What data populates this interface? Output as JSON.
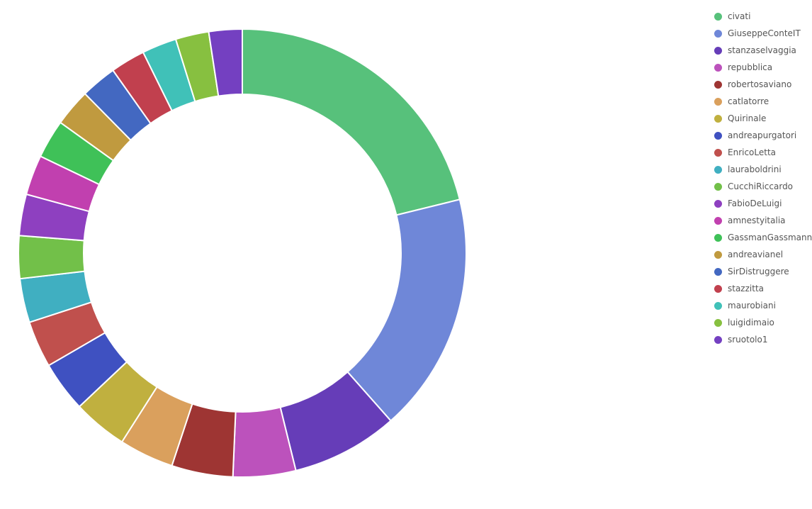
{
  "chart_data": {
    "type": "pie",
    "variant": "donut",
    "legend_position": "top-right",
    "title": "",
    "categories": [
      "civati",
      "GiuseppeConteIT",
      "stanzaselvaggia",
      "repubblica",
      "robertosaviano",
      "catlatorre",
      "Quirinale",
      "andreapurgatori",
      "EnricoLetta",
      "lauraboldrini",
      "CucchiRiccardo",
      "FabioDeLuigi",
      "amnestyitalia",
      "GassmanGassmann",
      "andreavianel",
      "SirDistruggere",
      "stazzitta",
      "maurobiani",
      "luigidimaio",
      "sruotolo1"
    ],
    "values": [
      22.0,
      18.0,
      8.0,
      4.7,
      4.6,
      4.1,
      4.1,
      3.8,
      3.5,
      3.3,
      3.2,
      3.1,
      3.0,
      2.9,
      2.8,
      2.7,
      2.6,
      2.6,
      2.5,
      2.5
    ],
    "colors": [
      "#57c17b",
      "#6f87d8",
      "#663db8",
      "#bc52bc",
      "#9e3533",
      "#daa05d",
      "#c0b03f",
      "#3f51c1",
      "#c0504d",
      "#40afc1",
      "#72c049",
      "#8e40c0",
      "#c140af",
      "#3fc158",
      "#c09a3f",
      "#4368c1",
      "#c1404e",
      "#40c1b8",
      "#87c040",
      "#7440c1"
    ]
  }
}
